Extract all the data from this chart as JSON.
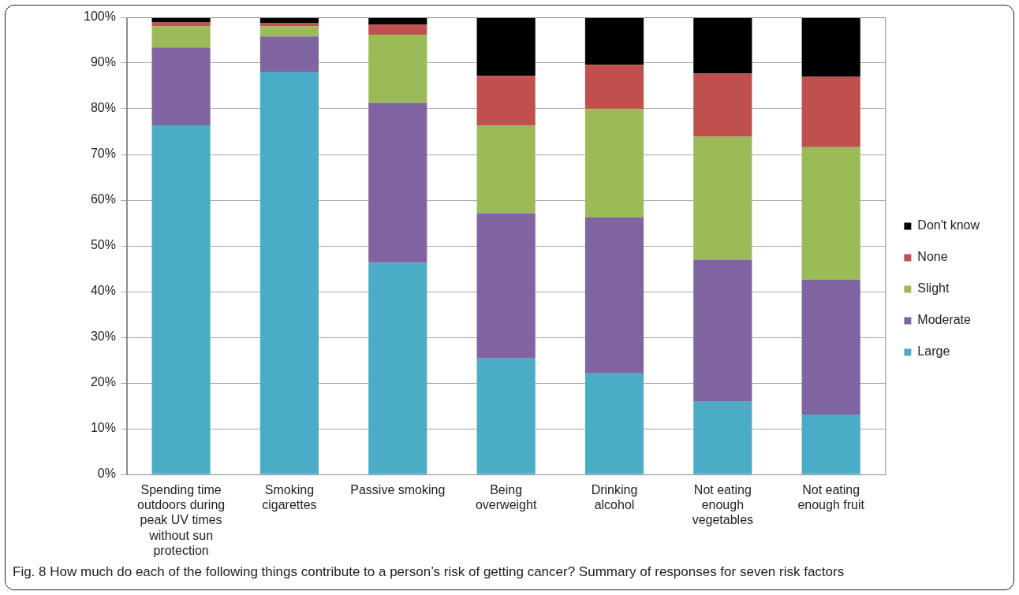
{
  "chart_data": {
    "type": "bar",
    "stacked": true,
    "categories": [
      "Spending time outdoors during peak UV times without sun protection",
      "Smoking cigarettes",
      "Passive smoking",
      "Being overweight",
      "Drinking alcohol",
      "Not eating enough vegetables",
      "Not eating enough fruit"
    ],
    "series": [
      {
        "name": "Large",
        "color": "#4bacc6",
        "values": [
          76.4,
          88.1,
          46.3,
          25.4,
          22.1,
          15.9,
          13.1
        ]
      },
      {
        "name": "Moderate",
        "color": "#8064a2",
        "values": [
          17.0,
          7.7,
          35.0,
          31.7,
          34.1,
          31.1,
          29.5
        ]
      },
      {
        "name": "Slight",
        "color": "#9bbb59",
        "values": [
          4.6,
          2.2,
          14.9,
          19.2,
          23.7,
          26.9,
          29.0
        ]
      },
      {
        "name": "None",
        "color": "#c0504d",
        "values": [
          0.9,
          0.7,
          2.2,
          10.9,
          9.7,
          13.8,
          15.4
        ]
      },
      {
        "name": "Don't know",
        "color": "#000000",
        "values": [
          1.1,
          1.3,
          1.6,
          12.8,
          10.4,
          12.3,
          13.0
        ]
      }
    ],
    "ylim": [
      0,
      100
    ],
    "yticks": [
      {
        "value": 0,
        "label": "0%"
      },
      {
        "value": 10,
        "label": "10%"
      },
      {
        "value": 20,
        "label": "20%"
      },
      {
        "value": 30,
        "label": "30%"
      },
      {
        "value": 40,
        "label": "40%"
      },
      {
        "value": 50,
        "label": "50%"
      },
      {
        "value": 60,
        "label": "60%"
      },
      {
        "value": 70,
        "label": "70%"
      },
      {
        "value": 80,
        "label": "80%"
      },
      {
        "value": 90,
        "label": "90%"
      },
      {
        "value": 100,
        "label": "100%"
      }
    ],
    "grid": "y",
    "legend": "right",
    "annotations": [
      "Fig. 8 How much do each of the following things contribute to a person’s risk of getting cancer? Summary of responses for seven risk factors"
    ]
  }
}
